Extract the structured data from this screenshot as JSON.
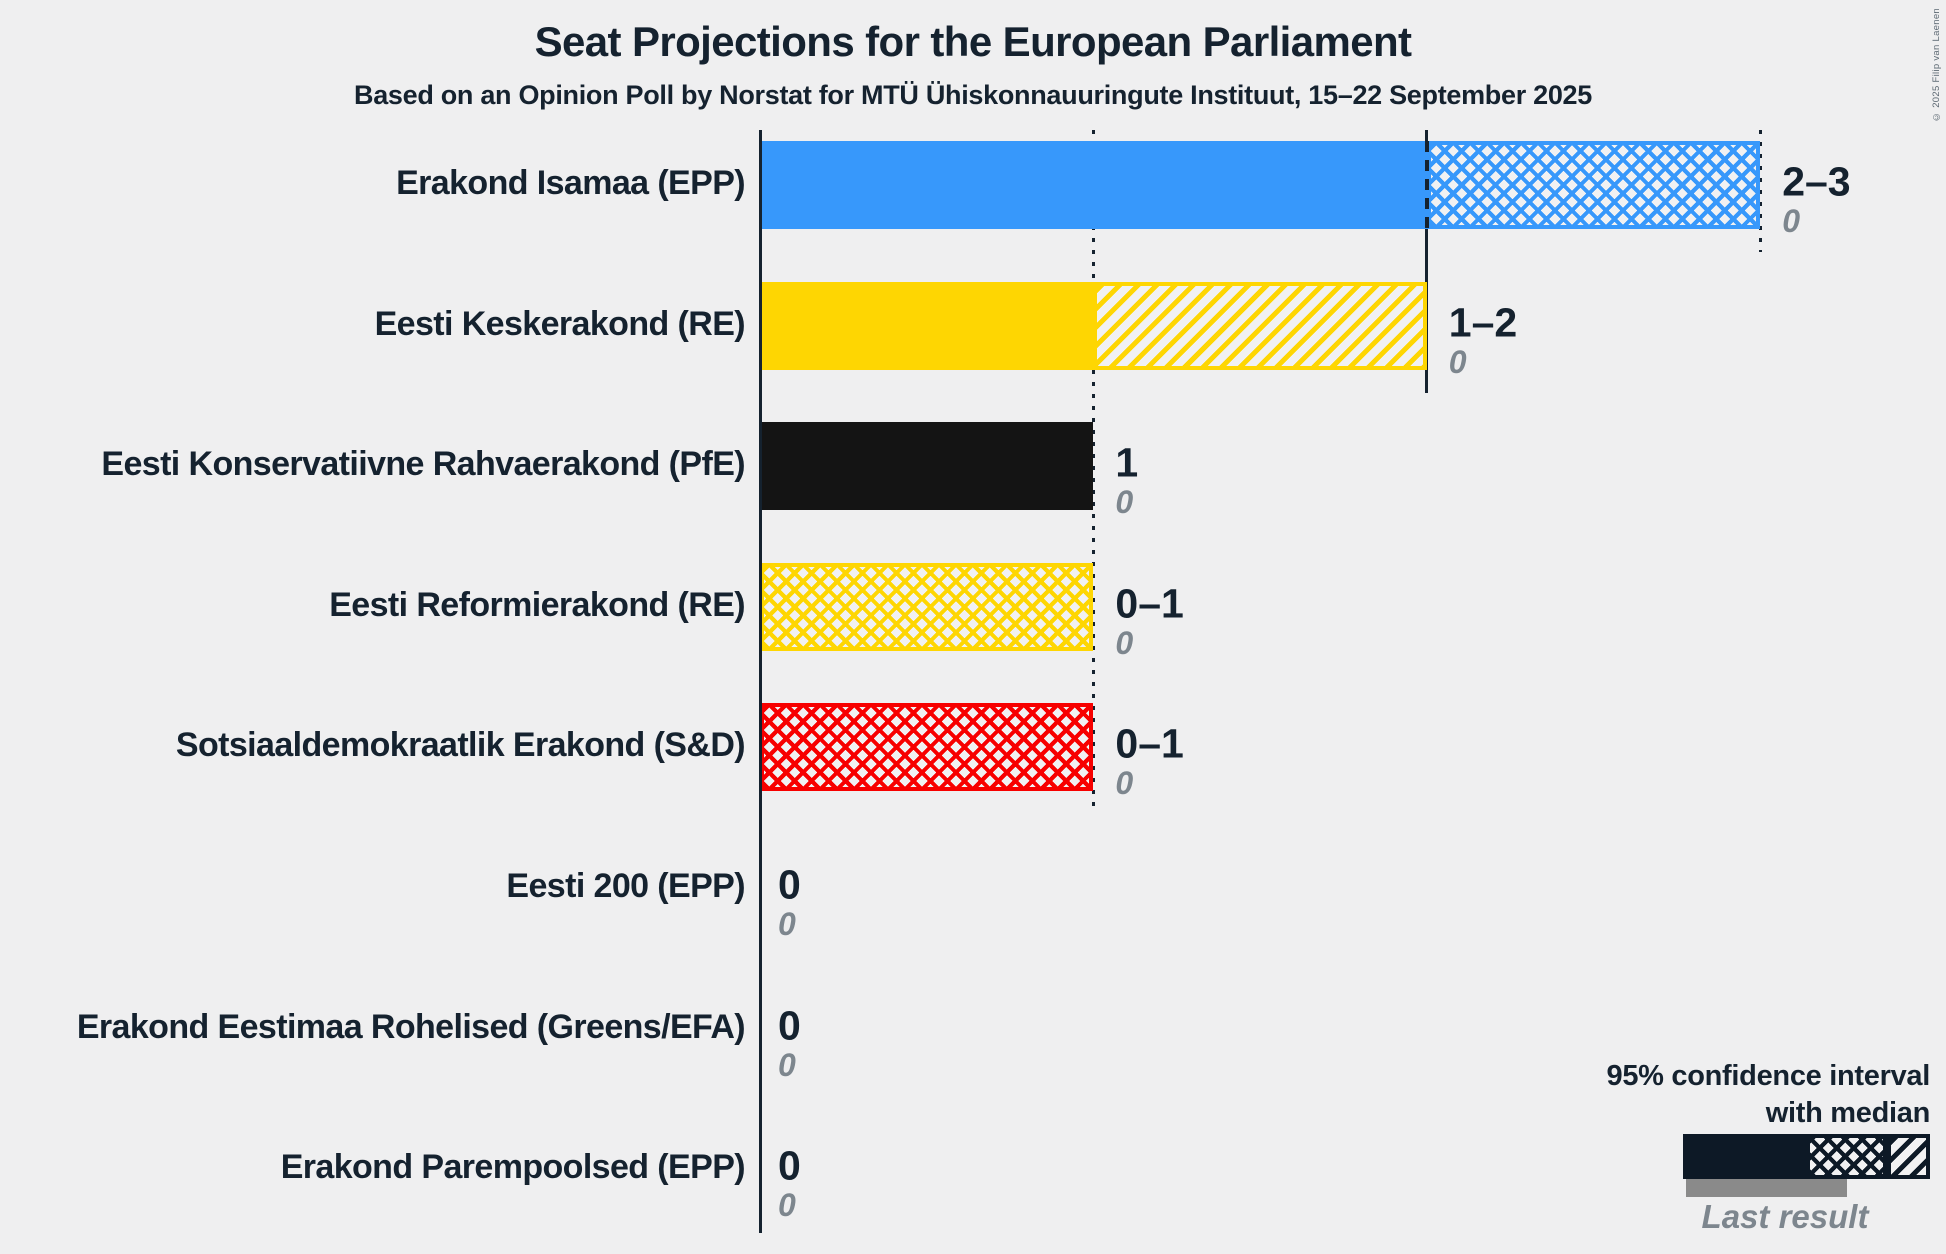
{
  "page": {
    "copyright": "© 2025 Filip van Laenen"
  },
  "colors": {
    "background": "#efeff0",
    "text_dark": "#15222f",
    "text_gray": "#7d868e",
    "axis": "#15222f",
    "legend_bar": "#0d1926",
    "last_result_bar": "#8a8a8a"
  },
  "chart_data": {
    "type": "bar",
    "orientation": "horizontal",
    "title": "Seat Projections for the European Parliament",
    "subtitle": "Based on an Opinion Poll by Norstat for MTÜ Ühiskonnauuringute Instituut, 15–22 September 2025",
    "xlabel": "",
    "ylabel": "",
    "x_axis": {
      "min": 0,
      "max": 3,
      "gridlines": [
        {
          "value": 1,
          "style": "dotted"
        },
        {
          "value": 2,
          "style": "solid"
        },
        {
          "value": 3,
          "style": "dotted"
        }
      ]
    },
    "legend_position": "bottom-right",
    "grid": "partial-vertical",
    "categories": [
      "Erakond Isamaa (EPP)",
      "Eesti Keskerakond (RE)",
      "Eesti Konservatiivne Rahvaerakond (PfE)",
      "Eesti Reformierakond (RE)",
      "Sotsiaaldemokraatlik Erakond (S&D)",
      "Eesti 200 (EPP)",
      "Erakond Eestimaa Rohelised (Greens/EFA)",
      "Erakond Parempoolsed (EPP)"
    ],
    "parties": [
      {
        "name": "Erakond Isamaa (EPP)",
        "color": "#3798fb",
        "ci_low": 2,
        "ci_high": 3,
        "ci_label": "2–3",
        "last_result": "0",
        "solid_from": 0,
        "solid_to": 2,
        "hatch_style": "crosshatch",
        "hatch_from": 2,
        "hatch_to": 3,
        "median_marker": 2
      },
      {
        "name": "Eesti Keskerakond (RE)",
        "color": "#fed602",
        "ci_low": 1,
        "ci_high": 2,
        "ci_label": "1–2",
        "last_result": "0",
        "solid_from": 0,
        "solid_to": 1,
        "hatch_style": "diagonal",
        "hatch_from": 1,
        "hatch_to": 2,
        "median_marker": null
      },
      {
        "name": "Eesti Konservatiivne Rahvaerakond (PfE)",
        "color": "#141414",
        "ci_low": 1,
        "ci_high": 1,
        "ci_label": "1",
        "last_result": "0",
        "solid_from": 0,
        "solid_to": 1,
        "hatch_style": null,
        "hatch_from": null,
        "hatch_to": null,
        "median_marker": null
      },
      {
        "name": "Eesti Reformierakond (RE)",
        "color": "#fed602",
        "ci_low": 0,
        "ci_high": 1,
        "ci_label": "0–1",
        "last_result": "0",
        "solid_from": 0,
        "solid_to": 0,
        "hatch_style": "crosshatch",
        "hatch_from": 0,
        "hatch_to": 1,
        "median_marker": null
      },
      {
        "name": "Sotsiaaldemokraatlik Erakond (S&D)",
        "color": "#f70000",
        "ci_low": 0,
        "ci_high": 1,
        "ci_label": "0–1",
        "last_result": "0",
        "solid_from": 0,
        "solid_to": 0,
        "hatch_style": "crosshatch",
        "hatch_from": 0,
        "hatch_to": 1,
        "median_marker": null
      },
      {
        "name": "Eesti 200 (EPP)",
        "color": null,
        "ci_low": 0,
        "ci_high": 0,
        "ci_label": "0",
        "last_result": "0",
        "solid_from": 0,
        "solid_to": 0,
        "hatch_style": null,
        "hatch_from": null,
        "hatch_to": null,
        "median_marker": null
      },
      {
        "name": "Erakond Eestimaa Rohelised (Greens/EFA)",
        "color": null,
        "ci_low": 0,
        "ci_high": 0,
        "ci_label": "0",
        "last_result": "0",
        "solid_from": 0,
        "solid_to": 0,
        "hatch_style": null,
        "hatch_from": null,
        "hatch_to": null,
        "median_marker": null
      },
      {
        "name": "Erakond Parempoolsed (EPP)",
        "color": null,
        "ci_low": 0,
        "ci_high": 0,
        "ci_label": "0",
        "last_result": "0",
        "solid_from": 0,
        "solid_to": 0,
        "hatch_style": null,
        "hatch_from": null,
        "hatch_to": null,
        "median_marker": null
      }
    ],
    "legend": {
      "line1": "95% confidence interval",
      "line2": "with median",
      "last_result_label": "Last result"
    }
  }
}
